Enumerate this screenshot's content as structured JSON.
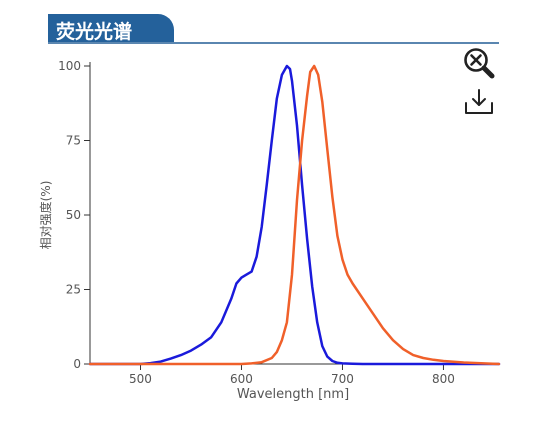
{
  "header": {
    "title": "荧光光谱"
  },
  "toolbar": {
    "reset_zoom_icon": "zoom-reset-icon",
    "download_icon": "download-icon"
  },
  "chart_data": {
    "type": "line",
    "title": "荧光光谱",
    "xlabel": "Wavelength [nm]",
    "ylabel": "相对强度(%)",
    "xlim": [
      450,
      855
    ],
    "ylim": [
      0,
      100
    ],
    "xticks": [
      500,
      600,
      700,
      800
    ],
    "yticks": [
      0,
      25,
      50,
      75,
      100
    ],
    "grid": false,
    "legend": "none",
    "series": [
      {
        "color": "#1a1adb",
        "x": [
          450,
          500,
          510,
          520,
          530,
          540,
          550,
          560,
          570,
          580,
          590,
          595,
          600,
          605,
          610,
          615,
          620,
          625,
          630,
          635,
          640,
          645,
          648,
          650,
          655,
          660,
          665,
          670,
          675,
          680,
          685,
          690,
          695,
          700,
          710,
          720,
          855
        ],
        "y": [
          0,
          0,
          0.3,
          0.8,
          1.8,
          3,
          4.5,
          6.5,
          9,
          14,
          22,
          27,
          29,
          30,
          31,
          36,
          46,
          60,
          75,
          89,
          97,
          100,
          99,
          95,
          80,
          60,
          42,
          26,
          14,
          6,
          2.5,
          1,
          0.4,
          0.2,
          0.1,
          0,
          0
        ]
      },
      {
        "color": "#f0602a",
        "x": [
          450,
          600,
          610,
          620,
          630,
          635,
          640,
          645,
          650,
          655,
          660,
          665,
          668,
          672,
          676,
          680,
          685,
          690,
          695,
          700,
          705,
          710,
          720,
          730,
          740,
          750,
          760,
          770,
          780,
          790,
          800,
          820,
          840,
          855
        ],
        "y": [
          0,
          0,
          0.2,
          0.6,
          2,
          4,
          8,
          14,
          30,
          55,
          75,
          90,
          98,
          100,
          97,
          88,
          72,
          56,
          43,
          35,
          30,
          27,
          22,
          17,
          12,
          8,
          5,
          3,
          2,
          1.4,
          1,
          0.5,
          0.2,
          0
        ]
      }
    ]
  }
}
